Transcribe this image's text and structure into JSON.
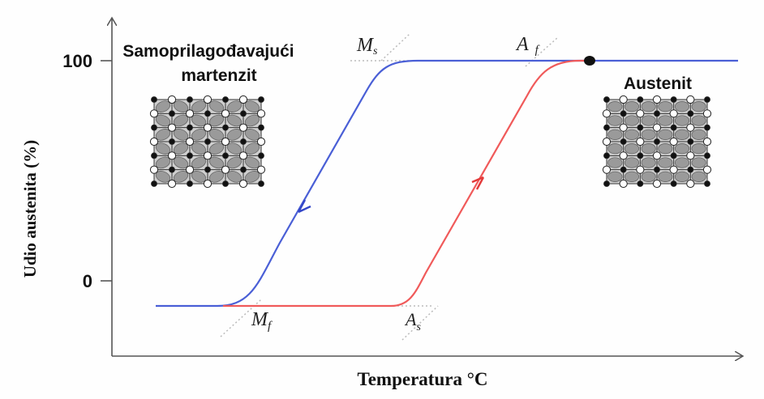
{
  "axes": {
    "y_label": "Udio austenita (%)",
    "x_label": "Temperatura °C",
    "y_ticks": [
      "100",
      "0"
    ]
  },
  "phases": {
    "martensite_line1": "Samoprilagođavajući",
    "martensite_line2": "martenzit",
    "austenite": "Austenit"
  },
  "temperature_markers": {
    "Ms": {
      "main": "M",
      "sub": "s"
    },
    "Mf": {
      "main": "M",
      "sub": "f"
    },
    "As": {
      "main": "A",
      "sub": "s"
    },
    "Af": {
      "main": "A",
      "sub": "f"
    }
  },
  "colors": {
    "cooling_curve": "#4a5fd6",
    "heating_curve": "#f05a5a",
    "axis": "#555555",
    "lattice_fill": "#9a9a9a",
    "lattice_dark": "#111111"
  }
}
